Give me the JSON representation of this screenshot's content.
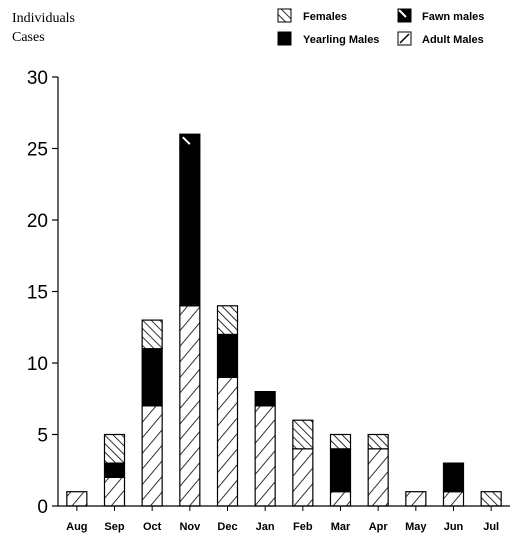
{
  "chart_data": {
    "type": "bar",
    "stacked": true,
    "ylabel_lines": [
      "Individuals",
      "Cases"
    ],
    "ylim": [
      0,
      30
    ],
    "yticks": [
      0,
      5,
      10,
      15,
      20,
      25,
      30
    ],
    "categories": [
      "Aug",
      "Sep",
      "Oct",
      "Nov",
      "Dec",
      "Jan",
      "Feb",
      "Mar",
      "Apr",
      "May",
      "Jun",
      "Jul"
    ],
    "series": [
      {
        "name": "Adult Males",
        "pattern": "diagonal-forward",
        "values": [
          1,
          2,
          7,
          14,
          9,
          7,
          4,
          1,
          4,
          1,
          1,
          0
        ]
      },
      {
        "name": "Yearling Males",
        "pattern": "solid",
        "values": [
          0,
          1,
          4,
          11,
          3,
          1,
          0,
          3,
          0,
          0,
          2,
          0
        ]
      },
      {
        "name": "Fawn males",
        "pattern": "solid-with-slash",
        "values": [
          0,
          0,
          0,
          1,
          0,
          0,
          0,
          0,
          0,
          0,
          0,
          0
        ]
      },
      {
        "name": "Females",
        "pattern": "diagonal-back",
        "values": [
          0,
          2,
          2,
          0,
          2,
          0,
          2,
          1,
          1,
          0,
          0,
          1
        ]
      }
    ],
    "legend_order": [
      "Females",
      "Fawn males",
      "Yearling Males",
      "Adult Males"
    ],
    "legend_position": "top-right",
    "grid": false
  }
}
